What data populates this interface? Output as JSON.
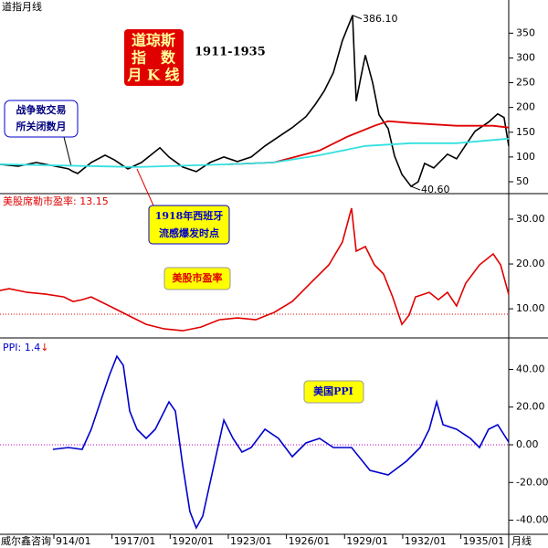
{
  "chart_data": [
    {
      "type": "line",
      "title": "道指月线",
      "subtitle": "1911-1935",
      "badge": [
        "道琼斯",
        "指　数",
        "月 K 线"
      ],
      "annotations": [
        "战争致交易",
        "所关闭数月"
      ],
      "xlim": [
        1911.22,
        1937.47
      ],
      "ylim": [
        26,
        417
      ],
      "yticks": [
        50,
        100,
        150,
        200,
        250,
        300,
        350
      ],
      "series": [
        {
          "color": "#000000",
          "x": [
            1911.22,
            1912.16,
            1913.1,
            1914.05,
            1914.75,
            1915.0,
            1915.23,
            1915.93,
            1916.64,
            1917.11,
            1917.82,
            1918.52,
            1919.47,
            1919.94,
            1920.65,
            1921.35,
            1922.06,
            1922.77,
            1923.47,
            1924.18,
            1924.89,
            1925.59,
            1926.3,
            1927.01,
            1927.48,
            1927.95,
            1928.42,
            1928.89,
            1929.41,
            1929.6,
            1929.83,
            1930.07,
            1930.45,
            1930.78,
            1931.25,
            1931.58,
            1931.96,
            1932.43,
            1932.8,
            1933.13,
            1933.6,
            1934.31,
            1934.78,
            1935.25,
            1935.73,
            1936.43,
            1936.9,
            1937.23,
            1937.47
          ],
          "values": [
            85.2,
            81.5,
            88.9,
            81.5,
            75.9,
            70.4,
            66.7,
            88.9,
            103.7,
            94.4,
            75.9,
            88.9,
            118.5,
            100,
            79.6,
            70.4,
            88.9,
            100,
            90.7,
            100,
            122.2,
            140.7,
            159.3,
            181.5,
            205.6,
            233.3,
            270.4,
            335.2,
            386.1,
            212.9,
            259.3,
            305.6,
            250,
            185.2,
            157.4,
            101.9,
            64.8,
            40.6,
            50,
            87,
            77.8,
            105.6,
            96.3,
            124.1,
            151.9,
            170.4,
            187,
            179.6,
            122.2
          ],
          "value_labels": [
            null,
            null,
            null,
            null,
            null,
            null,
            null,
            null,
            null,
            null,
            null,
            null,
            null,
            null,
            null,
            null,
            null,
            null,
            null,
            null,
            null,
            null,
            null,
            null,
            null,
            null,
            null,
            null,
            "386.10",
            null,
            null,
            null,
            null,
            null,
            null,
            null,
            null,
            "40.60",
            null,
            null,
            null,
            null,
            null,
            null,
            null,
            null,
            null,
            null,
            null
          ]
        },
        {
          "color": "#e00000",
          "x": [
            1923.0,
            1925.36,
            1927.71,
            1929.13,
            1930.54,
            1931.25,
            1932.43,
            1934.78,
            1936.67,
            1937.47
          ],
          "values": [
            85.2,
            88.9,
            113,
            140.7,
            163,
            172.2,
            168.5,
            163,
            163,
            159.3
          ]
        },
        {
          "color": "#33e0e0",
          "x": [
            1911.22,
            1918.29,
            1923.0,
            1925.36,
            1927.71,
            1930.07,
            1932.43,
            1934.78,
            1937.47
          ],
          "values": [
            85.2,
            79.6,
            85.2,
            88.9,
            103.7,
            122.2,
            127.8,
            127.8,
            137
          ]
        }
      ]
    },
    {
      "type": "line",
      "title": "美股席勒市盈率:",
      "annotations": [
        "1918年西班牙",
        "流感爆发时点"
      ],
      "label": "美股市盈率",
      "xlim": [
        1911.22,
        1937.47
      ],
      "ylim": [
        3.5,
        35.7
      ],
      "yticks": [
        {
          "value": 10,
          "label": "10.00"
        },
        {
          "value": 20,
          "label": "20.00"
        },
        {
          "value": 30,
          "label": "30.00"
        }
      ],
      "hline": 8.8,
      "hline_color": "#e00000",
      "series": [
        {
          "color": "#e00000",
          "x": [
            1911.22,
            1911.69,
            1912.63,
            1913.58,
            1914.52,
            1914.99,
            1915.46,
            1915.93,
            1916.88,
            1917.82,
            1918.76,
            1919.7,
            1920.65,
            1921.59,
            1922.53,
            1923.47,
            1924.42,
            1925.36,
            1926.3,
            1927.24,
            1928.19,
            1928.89,
            1929.36,
            1929.6,
            1930.07,
            1930.54,
            1931.01,
            1931.48,
            1931.96,
            1932.33,
            1932.66,
            1933.37,
            1933.84,
            1934.31,
            1934.78,
            1935.25,
            1935.96,
            1936.67,
            1937.05,
            1937.47
          ],
          "values": [
            14.08,
            14.49,
            13.67,
            13.27,
            12.65,
            11.63,
            12.04,
            12.65,
            10.61,
            8.57,
            6.53,
            5.51,
            5.1,
            5.92,
            7.55,
            7.96,
            7.55,
            9.18,
            11.63,
            15.71,
            19.8,
            24.9,
            32.45,
            22.86,
            23.88,
            19.8,
            17.76,
            12.65,
            6.53,
            8.57,
            12.65,
            13.67,
            12.04,
            13.67,
            10.61,
            15.71,
            19.8,
            22.24,
            19.8,
            13.15
          ]
        }
      ]
    },
    {
      "type": "line",
      "title": "PPI:",
      "arrow": "↓",
      "label": "美国PPI",
      "footer": "威尔鑫咨询",
      "x_label": "月线",
      "xlim": [
        1911.22,
        1937.47
      ],
      "ylim": [
        -47.5,
        56.7
      ],
      "yticks": [
        {
          "value": -40,
          "label": "-40.00"
        },
        {
          "value": -20,
          "label": "-20.00"
        },
        {
          "value": 0,
          "label": "0.00"
        },
        {
          "value": 20,
          "label": "20.00"
        },
        {
          "value": 40,
          "label": "40.00"
        }
      ],
      "xticks": [
        {
          "value": 1914,
          "label": "914/01"
        },
        {
          "value": 1917,
          "label": "1917/01"
        },
        {
          "value": 1920,
          "label": "1920/01"
        },
        {
          "value": 1923,
          "label": "1923/01"
        },
        {
          "value": 1926,
          "label": "1926/01"
        },
        {
          "value": 1929,
          "label": "1929/01"
        },
        {
          "value": 1932,
          "label": "1932/01"
        },
        {
          "value": 1935,
          "label": "1935/01"
        }
      ],
      "hline": 0,
      "hline_color": "#c000c0",
      "series": [
        {
          "color": "#0000cc",
          "x": [
            1913.95,
            1914.75,
            1915.46,
            1915.93,
            1916.4,
            1916.88,
            1917.25,
            1917.58,
            1917.91,
            1918.29,
            1918.76,
            1919.23,
            1919.94,
            1920.27,
            1920.65,
            1921.02,
            1921.35,
            1921.68,
            1922.15,
            1922.77,
            1923.24,
            1923.71,
            1924.18,
            1924.89,
            1925.59,
            1926.3,
            1927.01,
            1927.71,
            1928.42,
            1929.36,
            1930.31,
            1931.25,
            1932.19,
            1932.9,
            1933.37,
            1933.75,
            1934.08,
            1934.78,
            1935.49,
            1935.96,
            1936.43,
            1936.9,
            1937.47
          ],
          "values": [
            -2.42,
            -1.45,
            -2.42,
            8.24,
            22.79,
            37.33,
            47.03,
            42.18,
            17.94,
            8.24,
            3.39,
            8.24,
            22.79,
            17.94,
            -11.15,
            -35.39,
            -44.12,
            -37.82,
            -16,
            13.09,
            3.39,
            -3.88,
            -1.45,
            8.24,
            3.39,
            -6.3,
            0.97,
            3.39,
            -1.45,
            -1.45,
            -13.58,
            -16,
            -8.73,
            -1.45,
            8.24,
            22.79,
            10.67,
            8.24,
            3.39,
            -1.45,
            8.24,
            10.67,
            1.4
          ]
        }
      ]
    }
  ]
}
